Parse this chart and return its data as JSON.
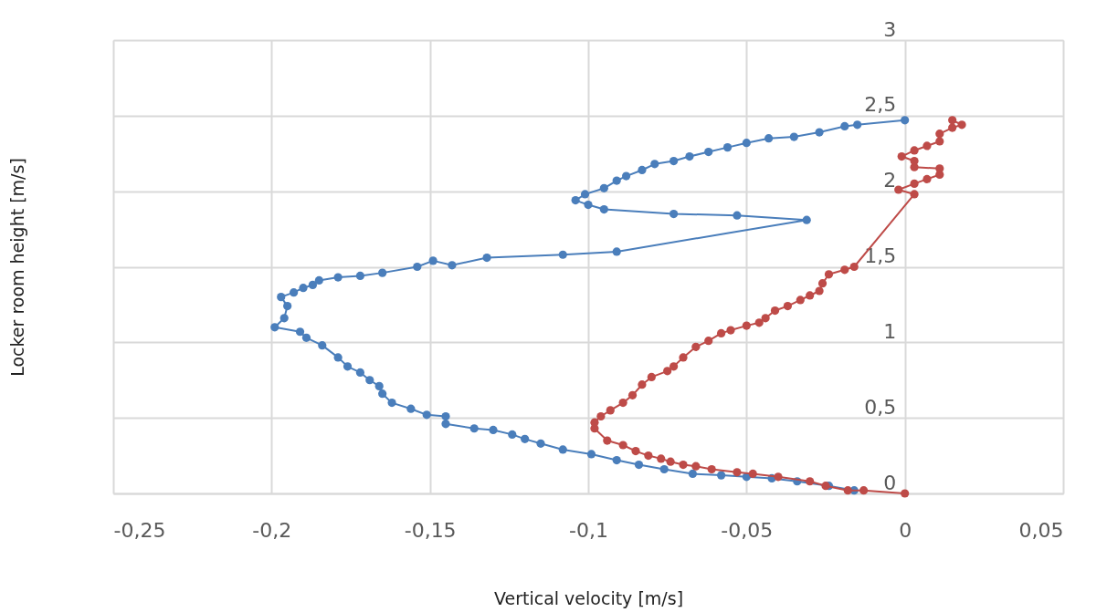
{
  "chart_data": {
    "type": "line",
    "xlabel": "Vertical velocity [m/s]",
    "ylabel": "Locker room height [m/s]",
    "xlim": [
      -0.25,
      0.05
    ],
    "ylim": [
      0,
      3
    ],
    "xticks": [
      {
        "value": -0.25,
        "label": "-0,25"
      },
      {
        "value": -0.2,
        "label": "-0,2"
      },
      {
        "value": -0.15,
        "label": "-0,15"
      },
      {
        "value": -0.1,
        "label": "-0,1"
      },
      {
        "value": -0.05,
        "label": "-0,05"
      },
      {
        "value": 0,
        "label": "0"
      },
      {
        "value": 0.05,
        "label": "0,05"
      }
    ],
    "yticks": [
      {
        "value": 0,
        "label": "0"
      },
      {
        "value": 0.5,
        "label": "0,5"
      },
      {
        "value": 1,
        "label": "1"
      },
      {
        "value": 1.5,
        "label": "1,5"
      },
      {
        "value": 2,
        "label": "2"
      },
      {
        "value": 2.5,
        "label": "2,5"
      },
      {
        "value": 3,
        "label": "3"
      }
    ],
    "grid": true,
    "marker": "circle",
    "line_style": "solid",
    "series": [
      {
        "color": "#4a7ebb",
        "x": [
          -0.016,
          -0.024,
          -0.034,
          -0.042,
          -0.05,
          -0.058,
          -0.067,
          -0.076,
          -0.084,
          -0.091,
          -0.099,
          -0.108,
          -0.115,
          -0.12,
          -0.124,
          -0.13,
          -0.136,
          -0.145,
          -0.145,
          -0.151,
          -0.156,
          -0.162,
          -0.165,
          -0.166,
          -0.169,
          -0.172,
          -0.176,
          -0.179,
          -0.184,
          -0.189,
          -0.191,
          -0.199,
          -0.196,
          -0.195,
          -0.197,
          -0.193,
          -0.19,
          -0.187,
          -0.185,
          -0.179,
          -0.172,
          -0.165,
          -0.154,
          -0.149,
          -0.143,
          -0.132,
          -0.108,
          -0.091,
          -0.031,
          -0.053,
          -0.073,
          -0.095,
          -0.1,
          -0.104,
          -0.101,
          -0.095,
          -0.091,
          -0.088,
          -0.083,
          -0.079,
          -0.073,
          -0.068,
          -0.062,
          -0.056,
          -0.05,
          -0.043,
          -0.035,
          -0.027,
          -0.019,
          -0.015,
          0.0
        ],
        "values": [
          0.02,
          0.05,
          0.08,
          0.1,
          0.11,
          0.12,
          0.13,
          0.16,
          0.19,
          0.22,
          0.26,
          0.29,
          0.33,
          0.36,
          0.39,
          0.42,
          0.43,
          0.46,
          0.51,
          0.52,
          0.56,
          0.6,
          0.66,
          0.71,
          0.75,
          0.8,
          0.84,
          0.9,
          0.98,
          1.03,
          1.07,
          1.1,
          1.16,
          1.24,
          1.3,
          1.33,
          1.36,
          1.38,
          1.41,
          1.43,
          1.44,
          1.46,
          1.5,
          1.54,
          1.51,
          1.56,
          1.58,
          1.6,
          1.81,
          1.84,
          1.85,
          1.88,
          1.91,
          1.94,
          1.98,
          2.02,
          2.07,
          2.1,
          2.14,
          2.18,
          2.2,
          2.23,
          2.26,
          2.29,
          2.32,
          2.35,
          2.36,
          2.39,
          2.43,
          2.44,
          2.47
        ]
      },
      {
        "color": "#be4b48",
        "x": [
          0.0,
          -0.013,
          -0.018,
          -0.025,
          -0.03,
          -0.04,
          -0.048,
          -0.053,
          -0.061,
          -0.066,
          -0.07,
          -0.074,
          -0.077,
          -0.081,
          -0.085,
          -0.089,
          -0.094,
          -0.098,
          -0.098,
          -0.096,
          -0.093,
          -0.089,
          -0.086,
          -0.083,
          -0.08,
          -0.075,
          -0.073,
          -0.07,
          -0.066,
          -0.062,
          -0.058,
          -0.055,
          -0.05,
          -0.046,
          -0.044,
          -0.041,
          -0.037,
          -0.033,
          -0.03,
          -0.027,
          -0.026,
          -0.024,
          -0.019,
          -0.016,
          0.003,
          -0.002,
          0.003,
          0.007,
          0.011,
          0.011,
          0.003,
          0.003,
          -0.001,
          0.003,
          0.007,
          0.011,
          0.011,
          0.015,
          0.018,
          0.015
        ],
        "values": [
          0.0,
          0.02,
          0.02,
          0.05,
          0.08,
          0.11,
          0.13,
          0.14,
          0.16,
          0.18,
          0.19,
          0.21,
          0.23,
          0.25,
          0.28,
          0.32,
          0.35,
          0.43,
          0.47,
          0.51,
          0.55,
          0.6,
          0.65,
          0.72,
          0.77,
          0.81,
          0.84,
          0.9,
          0.97,
          1.01,
          1.06,
          1.08,
          1.11,
          1.13,
          1.16,
          1.21,
          1.24,
          1.28,
          1.31,
          1.34,
          1.39,
          1.45,
          1.48,
          1.5,
          1.98,
          2.01,
          2.05,
          2.08,
          2.11,
          2.15,
          2.16,
          2.2,
          2.23,
          2.27,
          2.3,
          2.33,
          2.38,
          2.42,
          2.44,
          2.47
        ]
      }
    ]
  }
}
